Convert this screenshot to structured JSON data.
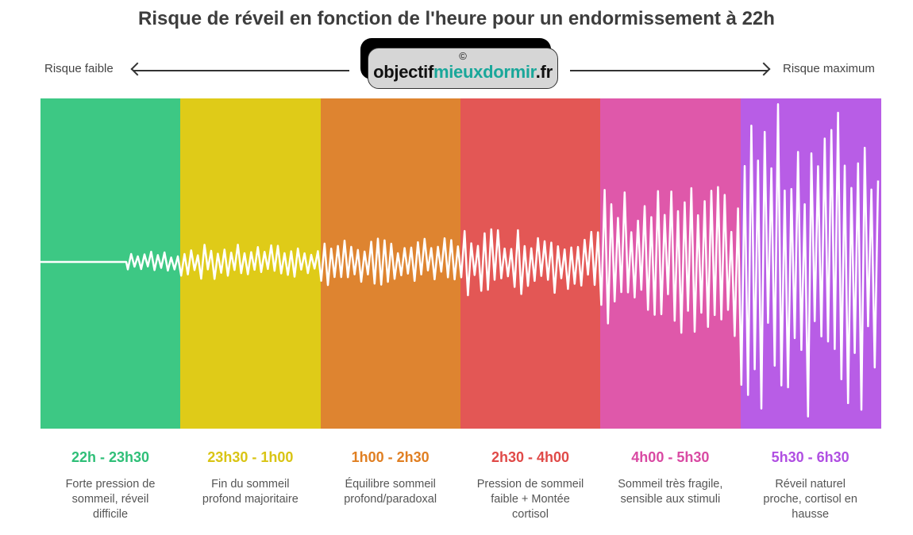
{
  "title": "Risque de réveil en fonction de l'heure pour un endormissement à 22h",
  "scale": {
    "low_label": "Risque faible",
    "high_label": "Risque maximum"
  },
  "logo": {
    "copyright": "©",
    "text_part1": "objectif",
    "text_part2": "mieuxdormir",
    "text_part3": ".fr"
  },
  "periods": [
    {
      "range": "22h - 23h30",
      "description": "Forte pression de sommeil, réveil difficile",
      "color": "#3dc884",
      "text_color": "#2fbf78"
    },
    {
      "range": "23h30 - 1h00",
      "description": "Fin du sommeil profond majoritaire",
      "color": "#dfcb18",
      "text_color": "#d9c414"
    },
    {
      "range": "1h00 - 2h30",
      "description": "Équilibre sommeil profond/paradoxal",
      "color": "#de8430",
      "text_color": "#e07f22"
    },
    {
      "range": "2h30 - 4h00",
      "description": "Pression de sommeil faible + Montée cortisol",
      "color": "#e35755",
      "text_color": "#e04a48"
    },
    {
      "range": "4h00 - 5h30",
      "description": "Sommeil très fragile, sensible aux stimuli",
      "color": "#df58aa",
      "text_color": "#d94aa3"
    },
    {
      "range": "5h30 - 6h30",
      "description": "Réveil naturel proche, cortisol en hausse",
      "color": "#b85de6",
      "text_color": "#b04fe2"
    }
  ]
}
